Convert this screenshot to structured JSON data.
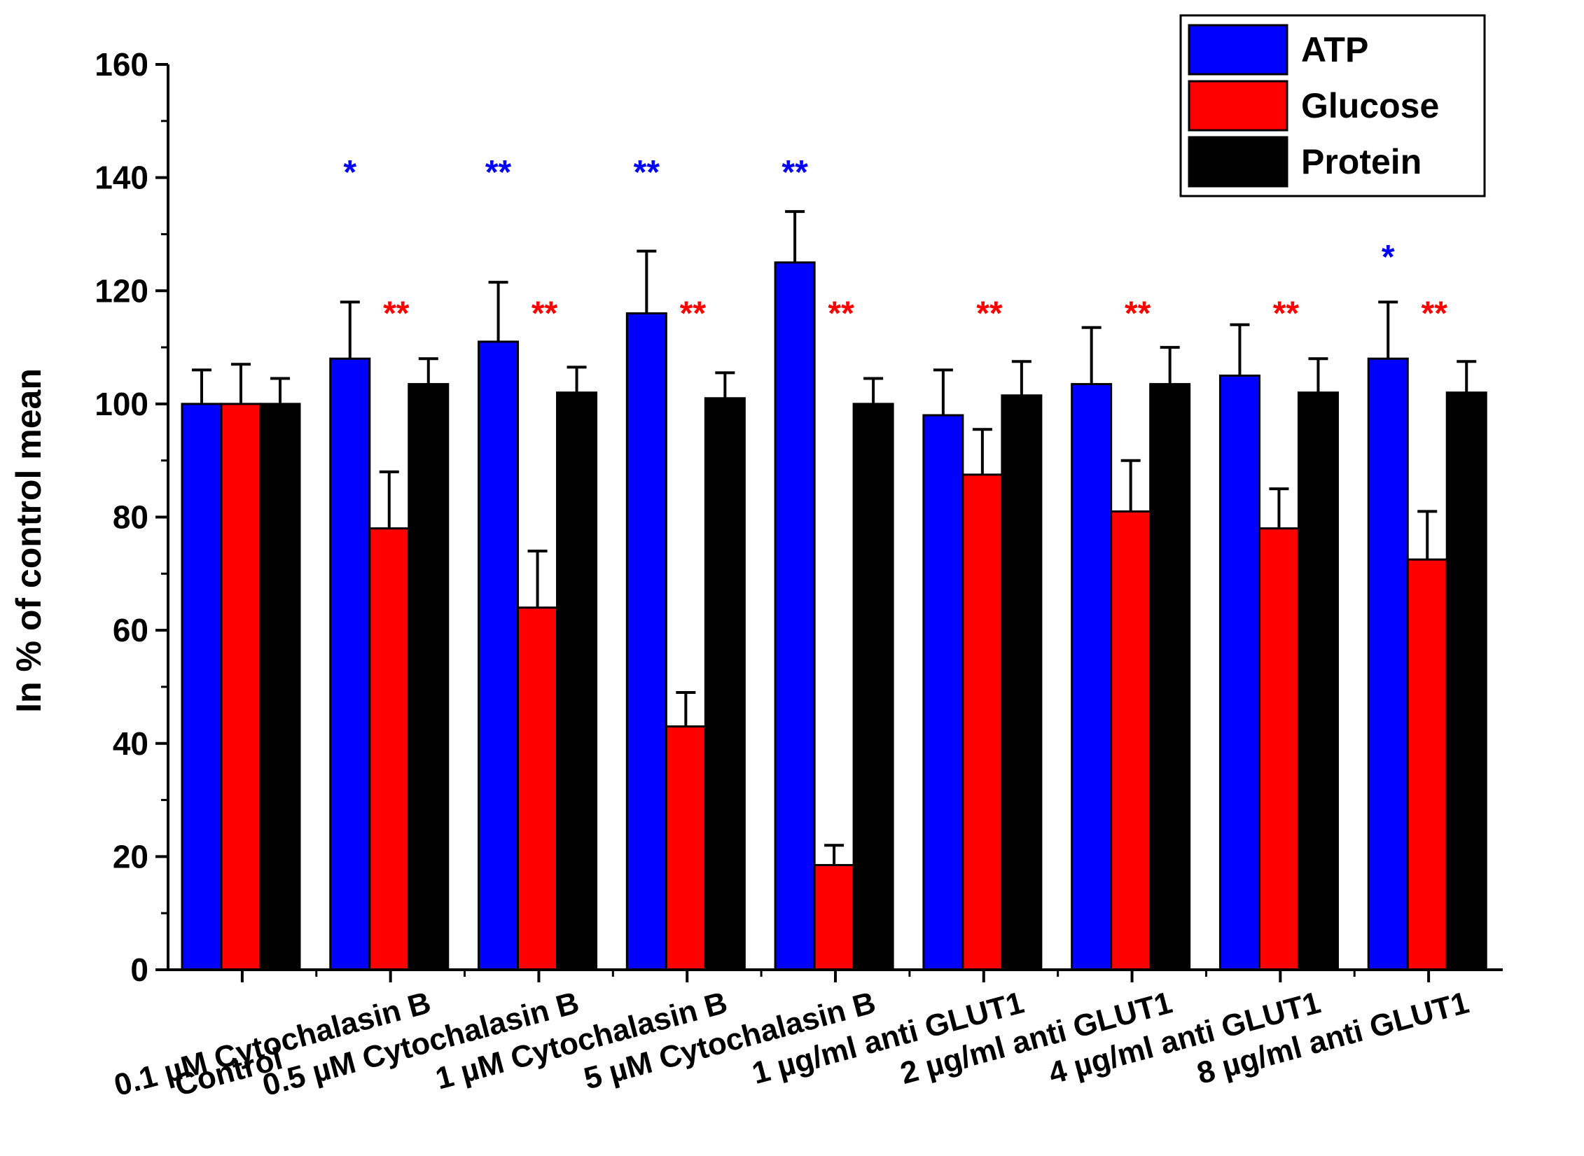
{
  "chart_data": {
    "type": "bar",
    "title": "",
    "xlabel": "",
    "ylabel": "In % of control mean",
    "ylim": [
      0,
      160
    ],
    "yticks": [
      0,
      20,
      40,
      60,
      80,
      100,
      120,
      140,
      160
    ],
    "categories": [
      "Control",
      "0.1 µM Cytochalasin B",
      "0.5 µM Cytochalasin B",
      "1 µM Cytochalasin B",
      "5 µM Cytochalasin B",
      "1 µg/ml anti GLUT1",
      "2 µg/ml anti GLUT1",
      "4 µg/ml anti GLUT1",
      "8 µg/ml anti GLUT1"
    ],
    "legend_position": "top-right",
    "series": [
      {
        "name": "ATP",
        "color": "#0000ff",
        "values": [
          100,
          108,
          111,
          116,
          125,
          98,
          103.5,
          105,
          108
        ],
        "errors": [
          6,
          10,
          10.5,
          11,
          9,
          8,
          10,
          9,
          10
        ],
        "significance": [
          "",
          "*",
          "**",
          "**",
          "**",
          "",
          "",
          "",
          "*"
        ],
        "significance_color": "#0000ff"
      },
      {
        "name": "Glucose",
        "color": "#ff0000",
        "values": [
          100,
          78,
          64,
          43,
          18.5,
          87.5,
          81,
          78,
          72.5
        ],
        "errors": [
          7,
          10,
          10,
          6,
          3.5,
          8,
          9,
          7,
          8.5
        ],
        "significance": [
          "",
          "**",
          "**",
          "**",
          "**",
          "**",
          "**",
          "**",
          "**"
        ],
        "significance_color": "#ff0000"
      },
      {
        "name": "Protein",
        "color": "#000000",
        "values": [
          100,
          103.5,
          102,
          101,
          100,
          101.5,
          103.5,
          102,
          102
        ],
        "errors": [
          4.5,
          4.5,
          4.5,
          4.5,
          4.5,
          6,
          6.5,
          6,
          5.5
        ],
        "significance": [
          "",
          "",
          "",
          "",
          "",
          "",
          "",
          "",
          ""
        ],
        "significance_color": "#000000"
      }
    ]
  }
}
